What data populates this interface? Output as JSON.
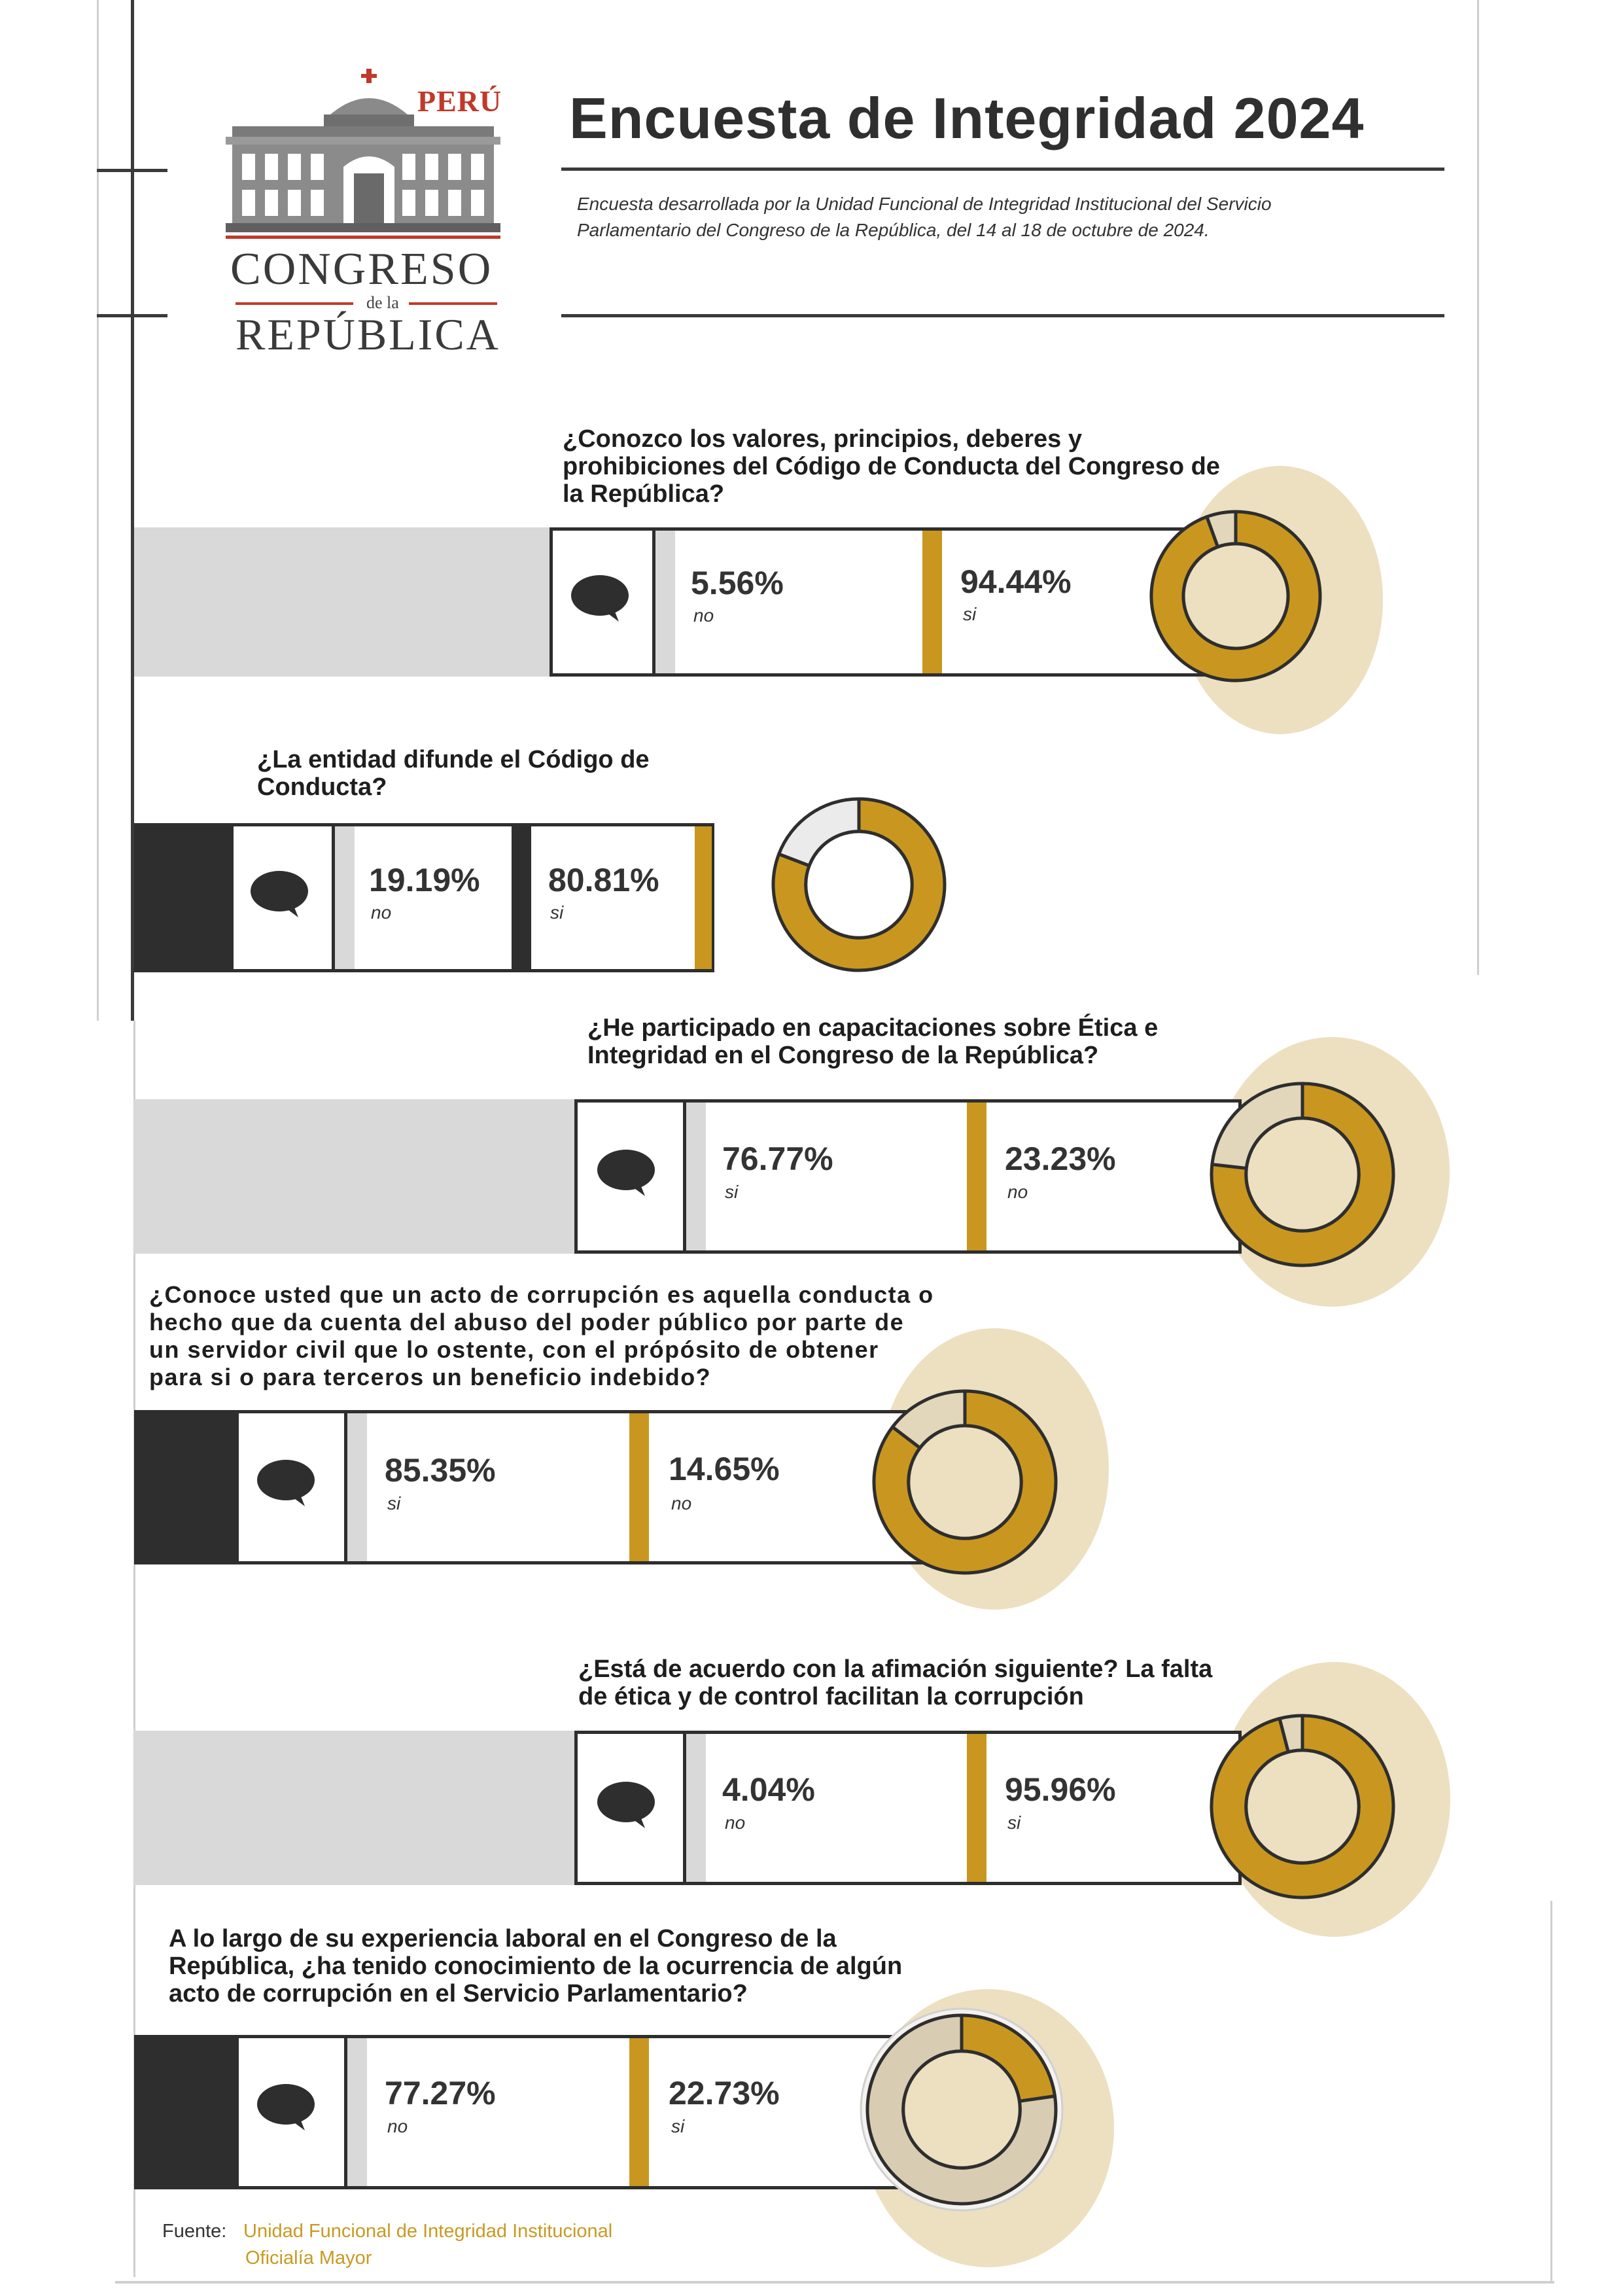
{
  "header": {
    "logo_country": "PERÚ",
    "logo_line1": "CONGRESO",
    "logo_small": "de la",
    "logo_line2": "REPÚBLICA",
    "title": "Encuesta de Integridad 2024",
    "subtitle": "Encuesta desarrollada por la Unidad Funcional de Integridad Institucional del Servicio Parlamentario del Congreso de la República, del 14 al 18 de octubre de 2024."
  },
  "colors": {
    "gold": "#c9971f",
    "light_gray": "#d9d9d9",
    "dark": "#2e2e2e",
    "halo": "#ece0c1"
  },
  "chart_data": [
    {
      "type": "pie",
      "title": "¿Conozco los valores, principios, deberes y prohibiciones del Código de Conducta del Congreso de la República?",
      "slices": [
        {
          "label": "no",
          "value": 5.56,
          "text": "5.56%"
        },
        {
          "label": "si",
          "value": 94.44,
          "text": "94.44%"
        }
      ]
    },
    {
      "type": "pie",
      "title": "¿La entidad difunde el Código de Conducta?",
      "slices": [
        {
          "label": "no",
          "value": 19.19,
          "text": "19.19%"
        },
        {
          "label": "si",
          "value": 80.81,
          "text": "80.81%"
        }
      ]
    },
    {
      "type": "pie",
      "title": "¿He participado en capacitaciones sobre Ética e Integridad en el Congreso de la República?",
      "slices": [
        {
          "label": "si",
          "value": 76.77,
          "text": "76.77%"
        },
        {
          "label": "no",
          "value": 23.23,
          "text": "23.23%"
        }
      ]
    },
    {
      "type": "pie",
      "title": "¿Conoce usted que un acto de corrupción es aquella conducta o hecho que da cuenta del abuso del poder público por parte de un servidor civil que lo ostente, con el própósito de obtener para si o para terceros un beneficio indebido?",
      "slices": [
        {
          "label": "si",
          "value": 85.35,
          "text": "85.35%"
        },
        {
          "label": "no",
          "value": 14.65,
          "text": "14.65%"
        }
      ]
    },
    {
      "type": "pie",
      "title": "¿Está de acuerdo con la afimación siguiente? La falta de ética y de control facilitan la corrupción",
      "slices": [
        {
          "label": "no",
          "value": 4.04,
          "text": "4.04%"
        },
        {
          "label": "si",
          "value": 95.96,
          "text": "95.96%"
        }
      ]
    },
    {
      "type": "pie",
      "title": "A lo largo de su experiencia laboral en el Congreso de la República, ¿ha tenido conocimiento de la ocurrencia de algún acto de corrupción en el Servicio Parlamentario?",
      "slices": [
        {
          "label": "no",
          "value": 77.27,
          "text": "77.27%"
        },
        {
          "label": "si",
          "value": 22.73,
          "text": "22.73%"
        }
      ]
    }
  ],
  "footer": {
    "label": "Fuente:",
    "source_line1": "Unidad Funcional de Integridad Institucional",
    "source_line2": "Oficialía Mayor"
  }
}
